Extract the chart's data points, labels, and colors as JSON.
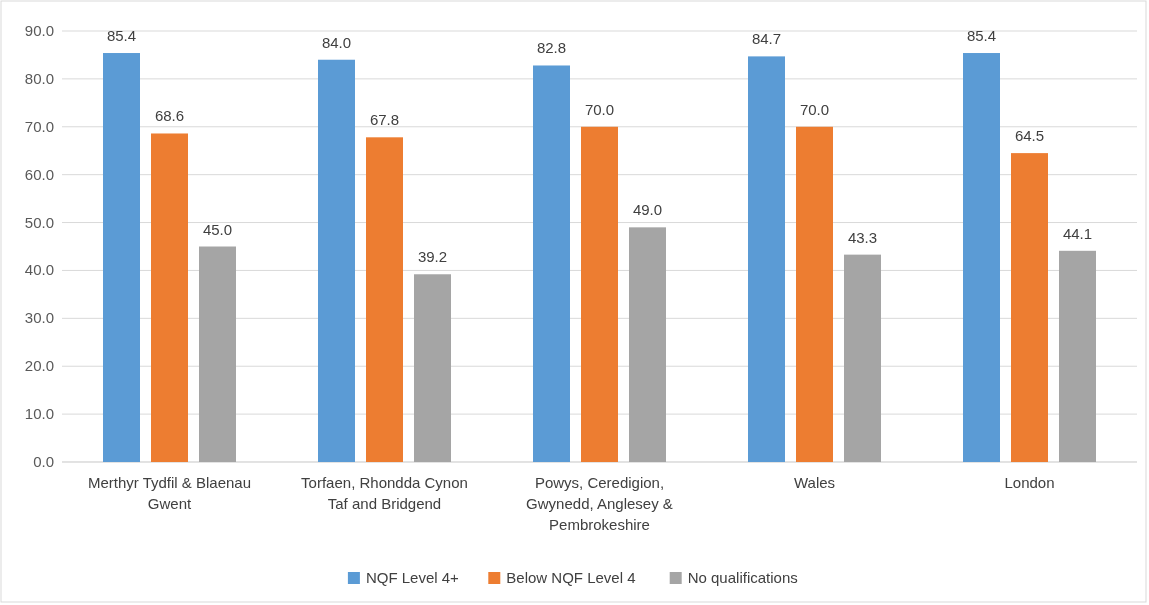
{
  "chart_data": {
    "type": "bar",
    "categories": [
      "Merthyr Tydfil & Blaenau Gwent",
      "Torfaen, Rhondda Cynon Taf and Bridgend",
      "Powys, Ceredigion, Gwynedd, Anglesey & Pembrokeshire",
      "Wales",
      "London"
    ],
    "series": [
      {
        "name": "NQF Level 4+",
        "color": "#5b9bd5",
        "values": [
          85.4,
          84.0,
          82.8,
          84.7,
          85.4
        ],
        "value_labels": [
          "85.4",
          "84.0",
          "82.8",
          "84.7",
          "85.4"
        ]
      },
      {
        "name": "Below NQF Level 4",
        "color": "#ed7d31",
        "values": [
          68.6,
          67.8,
          70.0,
          70.0,
          64.5
        ],
        "value_labels": [
          "68.6",
          "67.8",
          "70.0",
          "70.0",
          "64.5"
        ]
      },
      {
        "name": "No qualifications",
        "color": "#a5a5a5",
        "values": [
          45.0,
          39.2,
          49.0,
          43.3,
          44.1
        ],
        "value_labels": [
          "45.0",
          "39.2",
          "49.0",
          "43.3",
          "44.1"
        ]
      }
    ],
    "ylim": [
      0,
      90
    ],
    "yticks": [
      {
        "value": 0,
        "label": "0.0"
      },
      {
        "value": 10,
        "label": "10.0"
      },
      {
        "value": 20,
        "label": "20.0"
      },
      {
        "value": 30,
        "label": "30.0"
      },
      {
        "value": 40,
        "label": "40.0"
      },
      {
        "value": 50,
        "label": "50.0"
      },
      {
        "value": 60,
        "label": "60.0"
      },
      {
        "value": 70,
        "label": "70.0"
      },
      {
        "value": 80,
        "label": "80.0"
      },
      {
        "value": 90,
        "label": "90.0"
      }
    ],
    "grid": "y",
    "legend": "bottom"
  }
}
